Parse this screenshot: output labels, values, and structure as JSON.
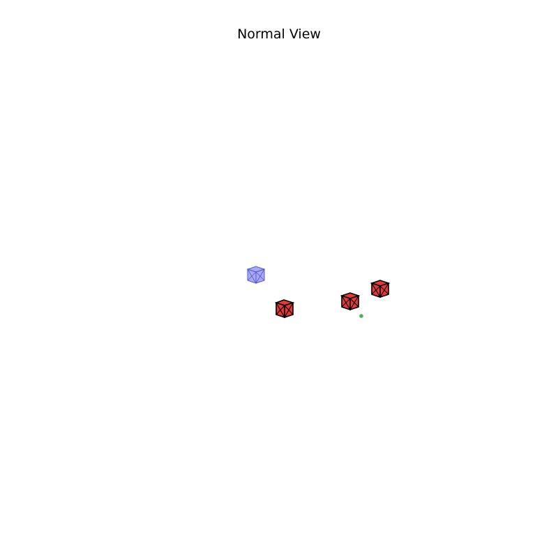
{
  "title": "Normal View",
  "colors": {
    "background": "#ffffff",
    "selected_fill": "#8a8ef0",
    "selected_stroke": "#5558c8",
    "obstacle_fill": "#e8383a",
    "obstacle_stroke": "#000000",
    "marker": "#4caf50"
  },
  "scene": {
    "objects": [
      {
        "kind": "cube",
        "role": "selected",
        "label": ""
      },
      {
        "kind": "cube",
        "role": "obstacle",
        "label": ""
      },
      {
        "kind": "cube",
        "role": "obstacle",
        "label": ""
      },
      {
        "kind": "cube",
        "role": "obstacle",
        "label": ""
      }
    ],
    "marker": {
      "kind": "point",
      "label": ""
    }
  }
}
